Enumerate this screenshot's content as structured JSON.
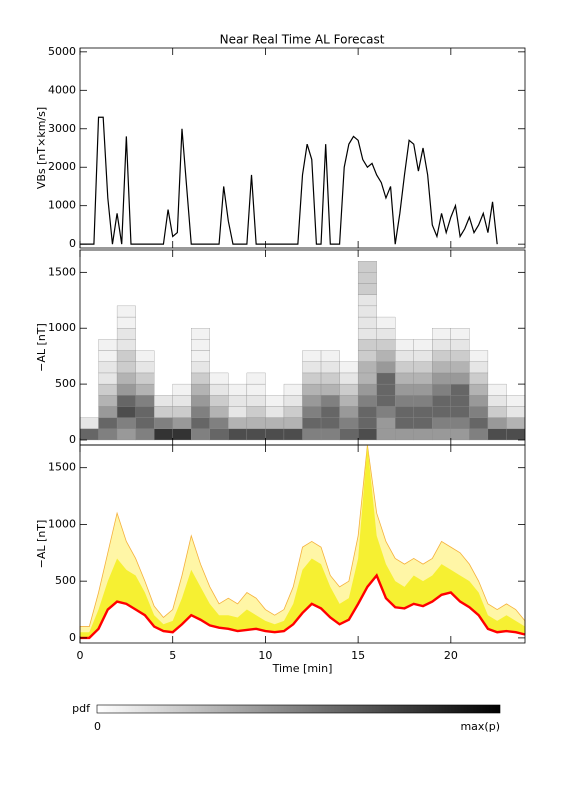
{
  "chart_data": [
    {
      "type": "line",
      "title": "Near Real Time AL Forecast",
      "ylabel": "VBs [nT×km/s]",
      "color": "#000000",
      "x": [
        0,
        0.25,
        0.5,
        0.75,
        1,
        1.25,
        1.5,
        1.75,
        2,
        2.25,
        2.5,
        2.75,
        3,
        3.25,
        3.5,
        3.75,
        4,
        4.25,
        4.5,
        4.75,
        5,
        5.25,
        5.5,
        5.75,
        6,
        6.25,
        6.5,
        6.75,
        7,
        7.25,
        7.5,
        7.75,
        8,
        8.25,
        8.5,
        8.75,
        9,
        9.25,
        9.5,
        9.75,
        10,
        10.25,
        10.5,
        10.75,
        11,
        11.25,
        11.5,
        11.75,
        12,
        12.25,
        12.5,
        12.75,
        13,
        13.25,
        13.5,
        13.75,
        14,
        14.25,
        14.5,
        14.75,
        15,
        15.25,
        15.5,
        15.75,
        16,
        16.25,
        16.5,
        16.75,
        17,
        17.25,
        17.5,
        17.75,
        18,
        18.25,
        18.5,
        18.75,
        19,
        19.25,
        19.5,
        19.75,
        20,
        20.25,
        20.5,
        20.75,
        21,
        21.25,
        21.5,
        21.75,
        22,
        22.25,
        22.5,
        22.75,
        23,
        23.25,
        23.5,
        23.75,
        24
      ],
      "values": [
        0,
        0,
        0,
        0,
        3300,
        3300,
        1200,
        0,
        800,
        0,
        2800,
        0,
        0,
        0,
        0,
        0,
        0,
        0,
        0,
        900,
        200,
        300,
        3000,
        1500,
        0,
        0,
        0,
        0,
        0,
        0,
        0,
        1500,
        600,
        0,
        0,
        0,
        0,
        1800,
        0,
        0,
        0,
        0,
        0,
        0,
        0,
        0,
        0,
        0,
        1800,
        2600,
        2200,
        0,
        0,
        2600,
        0,
        0,
        0,
        2000,
        2600,
        2800,
        2700,
        2200,
        2000,
        2100,
        1800,
        1600,
        1200,
        1500,
        0,
        800,
        1800,
        2700,
        2600,
        1900,
        2500,
        1800,
        500,
        200,
        800,
        300,
        700,
        1000,
        200,
        400,
        700,
        300,
        500,
        800,
        300,
        1100,
        0,
        null,
        null,
        null,
        null,
        null,
        null
      ],
      "xlim": [
        0,
        24
      ],
      "xticks": [
        0,
        5,
        10,
        15,
        20
      ],
      "ylim": [
        -100,
        5100
      ],
      "yticks": [
        0,
        1000,
        2000,
        3000,
        4000,
        5000
      ]
    },
    {
      "type": "heatmap",
      "ylabel": "−AL [nT]",
      "x_bins": [
        0,
        1,
        2,
        3,
        4,
        5,
        6,
        7,
        8,
        9,
        10,
        11,
        12,
        13,
        14,
        15,
        16,
        17,
        18,
        19,
        20,
        21,
        22,
        23,
        24
      ],
      "y_bins": [
        0,
        100,
        200,
        300,
        400,
        500,
        600,
        700,
        800,
        900,
        1000,
        1100,
        1200,
        1300,
        1400,
        1500,
        1600
      ],
      "z": [
        [
          0.6,
          0.1,
          0,
          0,
          0,
          0,
          0,
          0,
          0,
          0,
          0,
          0,
          0,
          0,
          0,
          0
        ],
        [
          0.5,
          0.6,
          0.4,
          0.3,
          0.2,
          0.1,
          0.1,
          0.05,
          0.05,
          0,
          0,
          0,
          0,
          0,
          0,
          0
        ],
        [
          0.4,
          0.5,
          0.7,
          0.6,
          0.4,
          0.3,
          0.2,
          0.2,
          0.1,
          0.1,
          0.05,
          0.05,
          0,
          0,
          0,
          0
        ],
        [
          0.5,
          0.6,
          0.6,
          0.5,
          0.3,
          0.2,
          0.1,
          0.05,
          0,
          0,
          0,
          0,
          0,
          0,
          0,
          0
        ],
        [
          0.8,
          0.5,
          0.2,
          0.1,
          0,
          0,
          0,
          0,
          0,
          0,
          0,
          0,
          0,
          0,
          0,
          0
        ],
        [
          0.8,
          0.4,
          0.2,
          0.1,
          0.05,
          0,
          0,
          0,
          0,
          0,
          0,
          0,
          0,
          0,
          0,
          0
        ],
        [
          0.5,
          0.6,
          0.5,
          0.4,
          0.3,
          0.2,
          0.1,
          0.05,
          0.05,
          0.05,
          0,
          0,
          0,
          0,
          0,
          0
        ],
        [
          0.6,
          0.5,
          0.3,
          0.2,
          0.1,
          0.05,
          0,
          0,
          0,
          0,
          0,
          0,
          0,
          0,
          0,
          0
        ],
        [
          0.7,
          0.3,
          0.1,
          0.1,
          0.05,
          0,
          0,
          0,
          0,
          0,
          0,
          0,
          0,
          0,
          0,
          0
        ],
        [
          0.7,
          0.3,
          0.2,
          0.1,
          0.05,
          0.05,
          0,
          0,
          0,
          0,
          0,
          0,
          0,
          0,
          0,
          0
        ],
        [
          0.7,
          0.3,
          0.1,
          0.05,
          0,
          0,
          0,
          0,
          0,
          0,
          0,
          0,
          0,
          0,
          0,
          0
        ],
        [
          0.7,
          0.3,
          0.2,
          0.1,
          0.05,
          0,
          0,
          0,
          0,
          0,
          0,
          0,
          0,
          0,
          0,
          0
        ],
        [
          0.5,
          0.6,
          0.5,
          0.4,
          0.3,
          0.2,
          0.1,
          0.05,
          0,
          0,
          0,
          0,
          0,
          0,
          0,
          0
        ],
        [
          0.5,
          0.6,
          0.6,
          0.5,
          0.3,
          0.2,
          0.1,
          0.05,
          0,
          0,
          0,
          0,
          0,
          0,
          0,
          0
        ],
        [
          0.6,
          0.5,
          0.4,
          0.3,
          0.2,
          0.1,
          0.05,
          0,
          0,
          0,
          0,
          0,
          0,
          0,
          0,
          0
        ],
        [
          0.7,
          0.6,
          0.6,
          0.5,
          0.4,
          0.3,
          0.3,
          0.2,
          0.2,
          0.1,
          0.1,
          0.1,
          0.1,
          0.2,
          0.2,
          0.2
        ],
        [
          0.4,
          0.4,
          0.5,
          0.6,
          0.6,
          0.6,
          0.4,
          0.3,
          0.2,
          0.1,
          0.05,
          0,
          0,
          0,
          0,
          0
        ],
        [
          0.4,
          0.6,
          0.6,
          0.5,
          0.4,
          0.3,
          0.2,
          0.1,
          0.05,
          0,
          0,
          0,
          0,
          0,
          0,
          0
        ],
        [
          0.4,
          0.6,
          0.6,
          0.5,
          0.4,
          0.3,
          0.2,
          0.1,
          0.05,
          0,
          0,
          0,
          0,
          0,
          0,
          0
        ],
        [
          0.4,
          0.5,
          0.6,
          0.6,
          0.5,
          0.4,
          0.3,
          0.2,
          0.1,
          0.05,
          0,
          0,
          0,
          0,
          0,
          0
        ],
        [
          0.4,
          0.5,
          0.6,
          0.6,
          0.6,
          0.4,
          0.3,
          0.2,
          0.1,
          0.05,
          0,
          0,
          0,
          0,
          0,
          0
        ],
        [
          0.5,
          0.6,
          0.5,
          0.4,
          0.3,
          0.2,
          0.1,
          0.05,
          0,
          0,
          0,
          0,
          0,
          0,
          0,
          0
        ],
        [
          0.7,
          0.4,
          0.2,
          0.1,
          0.05,
          0,
          0,
          0,
          0,
          0,
          0,
          0,
          0,
          0,
          0,
          0
        ],
        [
          0.7,
          0.3,
          0.1,
          0.05,
          0,
          0,
          0,
          0,
          0,
          0,
          0,
          0,
          0,
          0,
          0,
          0
        ]
      ],
      "colorbar": {
        "label": "pdf",
        "min_label": "0",
        "max_label": "max(p)"
      },
      "xlim": [
        0,
        24
      ],
      "xticks": [
        0,
        5,
        10,
        15,
        20
      ],
      "ylim": [
        -45,
        1700
      ],
      "yticks": [
        0,
        500,
        1000,
        1500
      ]
    },
    {
      "type": "area",
      "ylabel": "−AL [nT]",
      "xlabel": "Time [min]",
      "x": [
        0,
        0.5,
        1,
        1.5,
        2,
        2.5,
        3,
        3.5,
        4,
        4.5,
        5,
        5.5,
        6,
        6.5,
        7,
        7.5,
        8,
        8.5,
        9,
        9.5,
        10,
        10.5,
        11,
        11.5,
        12,
        12.5,
        13,
        13.5,
        14,
        14.5,
        15,
        15.5,
        16,
        16.5,
        17,
        17.5,
        18,
        18.5,
        19,
        19.5,
        20,
        20.5,
        21,
        21.5,
        22,
        22.5,
        23,
        23.5,
        24
      ],
      "series": [
        {
          "color": "#fff6a6",
          "edge_color": "#f5b03c",
          "values": [
            100,
            100,
            400,
            750,
            1100,
            850,
            700,
            500,
            280,
            180,
            250,
            550,
            900,
            650,
            450,
            300,
            350,
            300,
            400,
            350,
            250,
            200,
            250,
            450,
            800,
            850,
            800,
            550,
            450,
            500,
            900,
            1700,
            1100,
            850,
            700,
            650,
            700,
            650,
            700,
            850,
            800,
            750,
            650,
            500,
            300,
            250,
            300,
            250,
            150
          ]
        },
        {
          "color": "#f6f032",
          "values": [
            50,
            50,
            250,
            500,
            700,
            600,
            550,
            400,
            200,
            120,
            150,
            350,
            600,
            450,
            300,
            200,
            200,
            180,
            250,
            200,
            150,
            120,
            150,
            300,
            600,
            700,
            650,
            450,
            300,
            350,
            700,
            1700,
            900,
            650,
            500,
            450,
            550,
            500,
            550,
            650,
            600,
            550,
            500,
            400,
            200,
            150,
            200,
            150,
            100
          ]
        },
        {
          "color": "#ff0000",
          "values": [
            0,
            0,
            80,
            250,
            320,
            300,
            250,
            200,
            100,
            60,
            50,
            120,
            200,
            160,
            110,
            90,
            80,
            60,
            70,
            80,
            60,
            50,
            60,
            120,
            220,
            300,
            260,
            180,
            120,
            160,
            300,
            450,
            550,
            350,
            270,
            260,
            300,
            280,
            320,
            380,
            400,
            320,
            270,
            200,
            80,
            50,
            60,
            50,
            30
          ]
        }
      ],
      "xlim": [
        0,
        24
      ],
      "xticks": [
        0,
        5,
        10,
        15,
        20
      ],
      "ylim": [
        -45,
        1700
      ],
      "yticks": [
        0,
        500,
        1000,
        1500
      ]
    }
  ]
}
